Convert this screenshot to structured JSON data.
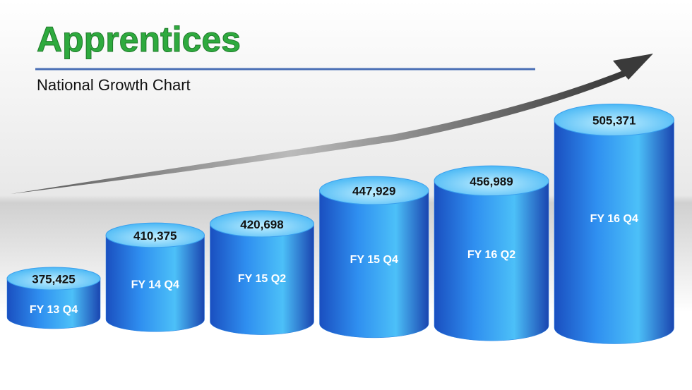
{
  "chart_data": {
    "type": "bar",
    "title": "Apprentices",
    "subtitle": "National Growth Chart",
    "categories": [
      "FY 13 Q4",
      "FY 14 Q4",
      "FY 15 Q2",
      "FY 15 Q4",
      "FY 16 Q2",
      "FY 16 Q4"
    ],
    "values": [
      375425,
      410375,
      420698,
      447929,
      456989,
      505371
    ],
    "value_labels": [
      "375,425",
      "410,375",
      "420,698",
      "447,929",
      "456,989",
      "505,371"
    ],
    "color": "#2a7fe0"
  }
}
